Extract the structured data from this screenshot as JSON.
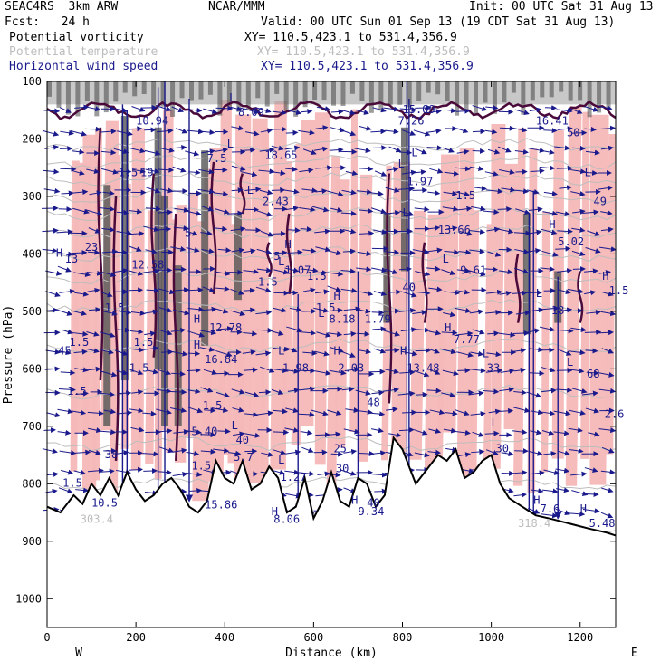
{
  "header": {
    "project": "SEAC4RS",
    "model": "3km ARW",
    "org": "NCAR/MMM",
    "init": "Init: 00 UTC Sat 31 Aug 13",
    "fcst_label": "Fcst:",
    "fcst_value": "24 h",
    "valid": "Valid: 00 UTC Sun 01 Sep 13 (19 CDT Sat 31 Aug 13)",
    "fields": [
      {
        "name": "Potential vorticity",
        "xy": "XY= 110.5,423.1 to 531.4,356.9"
      },
      {
        "name": "Potential temperature",
        "xy": "XY= 110.5,423.1 to 531.4,356.9"
      },
      {
        "name": "Horizontal wind speed",
        "xy": "XY= 110.5,423.1 to 531.4,356.9"
      }
    ]
  },
  "colors": {
    "pv": "#4a0a3a",
    "pv_fill_pos": "#f6b8b8",
    "pv_fill_high": "#555555",
    "theta": "#bdbdbd",
    "wind": "#1a1a8c",
    "terrain": "#000000"
  },
  "chart_data": {
    "type": "cross-section",
    "xlabel": "Distance (km)",
    "ylabel": "Pressure (hPa)",
    "xlim": [
      0,
      1280
    ],
    "ylim": [
      1050,
      100
    ],
    "x_ticks": [
      0,
      200,
      400,
      600,
      800,
      1000,
      1200
    ],
    "y_ticks": [
      100,
      200,
      300,
      400,
      500,
      600,
      700,
      800,
      900,
      1000
    ],
    "x_end_labels": {
      "left": "W",
      "right": "E"
    },
    "terrain_profile": [
      [
        0,
        840
      ],
      [
        30,
        850
      ],
      [
        60,
        820
      ],
      [
        80,
        835
      ],
      [
        100,
        800
      ],
      [
        120,
        820
      ],
      [
        140,
        790
      ],
      [
        160,
        820
      ],
      [
        180,
        780
      ],
      [
        200,
        810
      ],
      [
        220,
        830
      ],
      [
        240,
        820
      ],
      [
        260,
        800
      ],
      [
        280,
        790
      ],
      [
        300,
        810
      ],
      [
        320,
        840
      ],
      [
        340,
        850
      ],
      [
        360,
        830
      ],
      [
        380,
        760
      ],
      [
        400,
        790
      ],
      [
        420,
        800
      ],
      [
        440,
        760
      ],
      [
        460,
        810
      ],
      [
        480,
        800
      ],
      [
        500,
        770
      ],
      [
        520,
        790
      ],
      [
        540,
        850
      ],
      [
        560,
        840
      ],
      [
        580,
        790
      ],
      [
        600,
        860
      ],
      [
        620,
        830
      ],
      [
        640,
        780
      ],
      [
        660,
        830
      ],
      [
        680,
        840
      ],
      [
        700,
        790
      ],
      [
        720,
        800
      ],
      [
        740,
        840
      ],
      [
        760,
        820
      ],
      [
        780,
        720
      ],
      [
        800,
        740
      ],
      [
        830,
        800
      ],
      [
        860,
        770
      ],
      [
        880,
        750
      ],
      [
        900,
        760
      ],
      [
        920,
        740
      ],
      [
        940,
        790
      ],
      [
        960,
        780
      ],
      [
        980,
        760
      ],
      [
        1000,
        750
      ],
      [
        1020,
        800
      ],
      [
        1040,
        825
      ],
      [
        1060,
        835
      ],
      [
        1080,
        845
      ],
      [
        1100,
        855
      ],
      [
        1140,
        862
      ],
      [
        1180,
        870
      ],
      [
        1220,
        878
      ],
      [
        1260,
        885
      ],
      [
        1280,
        890
      ]
    ],
    "labels": [
      {
        "kind": "H",
        "x": 20,
        "p": 405
      },
      {
        "kind": "value",
        "text": "13",
        "x": 40,
        "p": 415
      },
      {
        "kind": "value",
        "text": "23",
        "x": 85,
        "p": 395
      },
      {
        "kind": "value",
        "text": "1.5",
        "x": 160,
        "p": 265
      },
      {
        "kind": "value",
        "text": "19",
        "x": 210,
        "p": 265
      },
      {
        "kind": "value",
        "text": "10.94",
        "x": 200,
        "p": 175
      },
      {
        "kind": "value",
        "text": "12.58",
        "x": 190,
        "p": 425
      },
      {
        "kind": "value",
        "text": "1.5",
        "x": 130,
        "p": 500
      },
      {
        "kind": "value",
        "text": "1.5",
        "x": 50,
        "p": 560
      },
      {
        "kind": "value",
        "text": "45",
        "x": 25,
        "p": 575
      },
      {
        "kind": "value",
        "text": "1.5",
        "x": 195,
        "p": 560
      },
      {
        "kind": "value",
        "text": "1.5",
        "x": 185,
        "p": 605
      },
      {
        "kind": "value",
        "text": "1.5",
        "x": 45,
        "p": 645
      },
      {
        "kind": "value",
        "text": "38",
        "x": 130,
        "p": 755
      },
      {
        "kind": "value",
        "text": "1.5",
        "x": 35,
        "p": 805
      },
      {
        "kind": "value",
        "text": "10.5",
        "x": 100,
        "p": 840
      },
      {
        "kind": "value",
        "text": "303.4",
        "x": 75,
        "p": 868
      },
      {
        "kind": "value",
        "text": "8.09",
        "x": 430,
        "p": 160
      },
      {
        "kind": "L",
        "x": 410,
        "p": 135
      },
      {
        "kind": "value",
        "text": "7.5",
        "x": 360,
        "p": 240
      },
      {
        "kind": "value",
        "text": "5",
        "x": 310,
        "p": 370
      },
      {
        "kind": "H",
        "x": 330,
        "p": 520
      },
      {
        "kind": "value",
        "text": "12.78",
        "x": 365,
        "p": 535
      },
      {
        "kind": "H",
        "x": 330,
        "p": 565
      },
      {
        "kind": "value",
        "text": "16.84",
        "x": 355,
        "p": 590
      },
      {
        "kind": "value",
        "text": "1.5",
        "x": 350,
        "p": 670
      },
      {
        "kind": "value",
        "text": "5.40",
        "x": 325,
        "p": 715
      },
      {
        "kind": "L",
        "x": 415,
        "p": 705
      },
      {
        "kind": "value",
        "text": "40",
        "x": 425,
        "p": 730
      },
      {
        "kind": "value",
        "text": "5.7",
        "x": 420,
        "p": 760
      },
      {
        "kind": "value",
        "text": "1.5",
        "x": 325,
        "p": 775
      },
      {
        "kind": "value",
        "text": "15.86",
        "x": 355,
        "p": 843
      },
      {
        "kind": "L",
        "x": 405,
        "p": 215
      },
      {
        "kind": "value",
        "text": "18.65",
        "x": 490,
        "p": 235
      },
      {
        "kind": "L",
        "x": 450,
        "p": 295
      },
      {
        "kind": "value",
        "text": "2.43",
        "x": 485,
        "p": 315
      },
      {
        "kind": "H",
        "x": 535,
        "p": 390
      },
      {
        "kind": "L",
        "x": 520,
        "p": 420
      },
      {
        "kind": "value",
        "text": "1.07",
        "x": 535,
        "p": 435
      },
      {
        "kind": "value",
        "text": "5",
        "x": 510,
        "p": 410
      },
      {
        "kind": "value",
        "text": "1.5",
        "x": 475,
        "p": 455
      },
      {
        "kind": "value",
        "text": "1.5",
        "x": 585,
        "p": 445
      },
      {
        "kind": "H",
        "x": 645,
        "p": 480
      },
      {
        "kind": "value",
        "text": "1.5",
        "x": 605,
        "p": 500
      },
      {
        "kind": "L",
        "x": 610,
        "p": 510
      },
      {
        "kind": "value",
        "text": "8.18",
        "x": 635,
        "p": 520
      },
      {
        "kind": "value",
        "text": "1.79",
        "x": 715,
        "p": 520
      },
      {
        "kind": "L",
        "x": 520,
        "p": 575
      },
      {
        "kind": "value",
        "text": "1.98",
        "x": 530,
        "p": 605
      },
      {
        "kind": "H",
        "x": 645,
        "p": 575
      },
      {
        "kind": "value",
        "text": "2.03",
        "x": 655,
        "p": 605
      },
      {
        "kind": "value",
        "text": "48",
        "x": 720,
        "p": 665
      },
      {
        "kind": "value",
        "text": "25",
        "x": 645,
        "p": 745
      },
      {
        "kind": "L",
        "x": 520,
        "p": 765
      },
      {
        "kind": "value",
        "text": "1.27",
        "x": 525,
        "p": 795
      },
      {
        "kind": "H",
        "x": 505,
        "p": 855
      },
      {
        "kind": "value",
        "text": "8.06",
        "x": 510,
        "p": 868
      },
      {
        "kind": "H",
        "x": 685,
        "p": 835
      },
      {
        "kind": "value",
        "text": "9.34",
        "x": 700,
        "p": 855
      },
      {
        "kind": "value",
        "text": "40",
        "x": 720,
        "p": 840
      },
      {
        "kind": "value",
        "text": "30",
        "x": 650,
        "p": 780
      },
      {
        "kind": "value",
        "text": "15.09",
        "x": 800,
        "p": 155
      },
      {
        "kind": "value",
        "text": "7.26",
        "x": 790,
        "p": 175
      },
      {
        "kind": "L",
        "x": 790,
        "p": 250
      },
      {
        "kind": "value",
        "text": "1.97",
        "x": 810,
        "p": 280
      },
      {
        "kind": "L",
        "x": 820,
        "p": 230
      },
      {
        "kind": "value",
        "text": "1.5",
        "x": 920,
        "p": 305
      },
      {
        "kind": "L",
        "x": 800,
        "p": 335
      },
      {
        "kind": "value",
        "text": "13.66",
        "x": 880,
        "p": 365
      },
      {
        "kind": "L",
        "x": 890,
        "p": 415
      },
      {
        "kind": "value",
        "text": "9.61",
        "x": 930,
        "p": 435
      },
      {
        "kind": "value",
        "text": "40",
        "x": 800,
        "p": 465
      },
      {
        "kind": "H",
        "x": 895,
        "p": 535
      },
      {
        "kind": "value",
        "text": "7.77",
        "x": 915,
        "p": 555
      },
      {
        "kind": "H",
        "x": 795,
        "p": 575
      },
      {
        "kind": "value",
        "text": "13.48",
        "x": 810,
        "p": 605
      },
      {
        "kind": "L",
        "x": 980,
        "p": 580
      },
      {
        "kind": "value",
        "text": "33",
        "x": 990,
        "p": 605
      },
      {
        "kind": "L",
        "x": 1000,
        "p": 700
      },
      {
        "kind": "value",
        "text": "30",
        "x": 1010,
        "p": 745
      },
      {
        "kind": "value",
        "text": "16.41",
        "x": 1100,
        "p": 175
      },
      {
        "kind": "value",
        "text": "50",
        "x": 1170,
        "p": 195
      },
      {
        "kind": "L",
        "x": 1210,
        "p": 265
      },
      {
        "kind": "value",
        "text": "49",
        "x": 1230,
        "p": 315
      },
      {
        "kind": "H",
        "x": 1130,
        "p": 355
      },
      {
        "kind": "value",
        "text": "5.02",
        "x": 1150,
        "p": 385
      },
      {
        "kind": "L",
        "x": 1100,
        "p": 475
      },
      {
        "kind": "value",
        "text": "18",
        "x": 1135,
        "p": 505
      },
      {
        "kind": "H",
        "x": 1250,
        "p": 445
      },
      {
        "kind": "value",
        "text": "1.5",
        "x": 1265,
        "p": 470
      },
      {
        "kind": "L",
        "x": 1170,
        "p": 595
      },
      {
        "kind": "value",
        "text": "68",
        "x": 1215,
        "p": 615
      },
      {
        "kind": "value",
        "text": "2.6",
        "x": 1255,
        "p": 685
      },
      {
        "kind": "H",
        "x": 1095,
        "p": 835
      },
      {
        "kind": "value",
        "text": "7.6",
        "x": 1110,
        "p": 850
      },
      {
        "kind": "H",
        "x": 1200,
        "p": 850
      },
      {
        "kind": "value",
        "text": "5.48",
        "x": 1220,
        "p": 875
      },
      {
        "kind": "value",
        "text": "318.4",
        "x": 1060,
        "p": 875
      }
    ]
  }
}
